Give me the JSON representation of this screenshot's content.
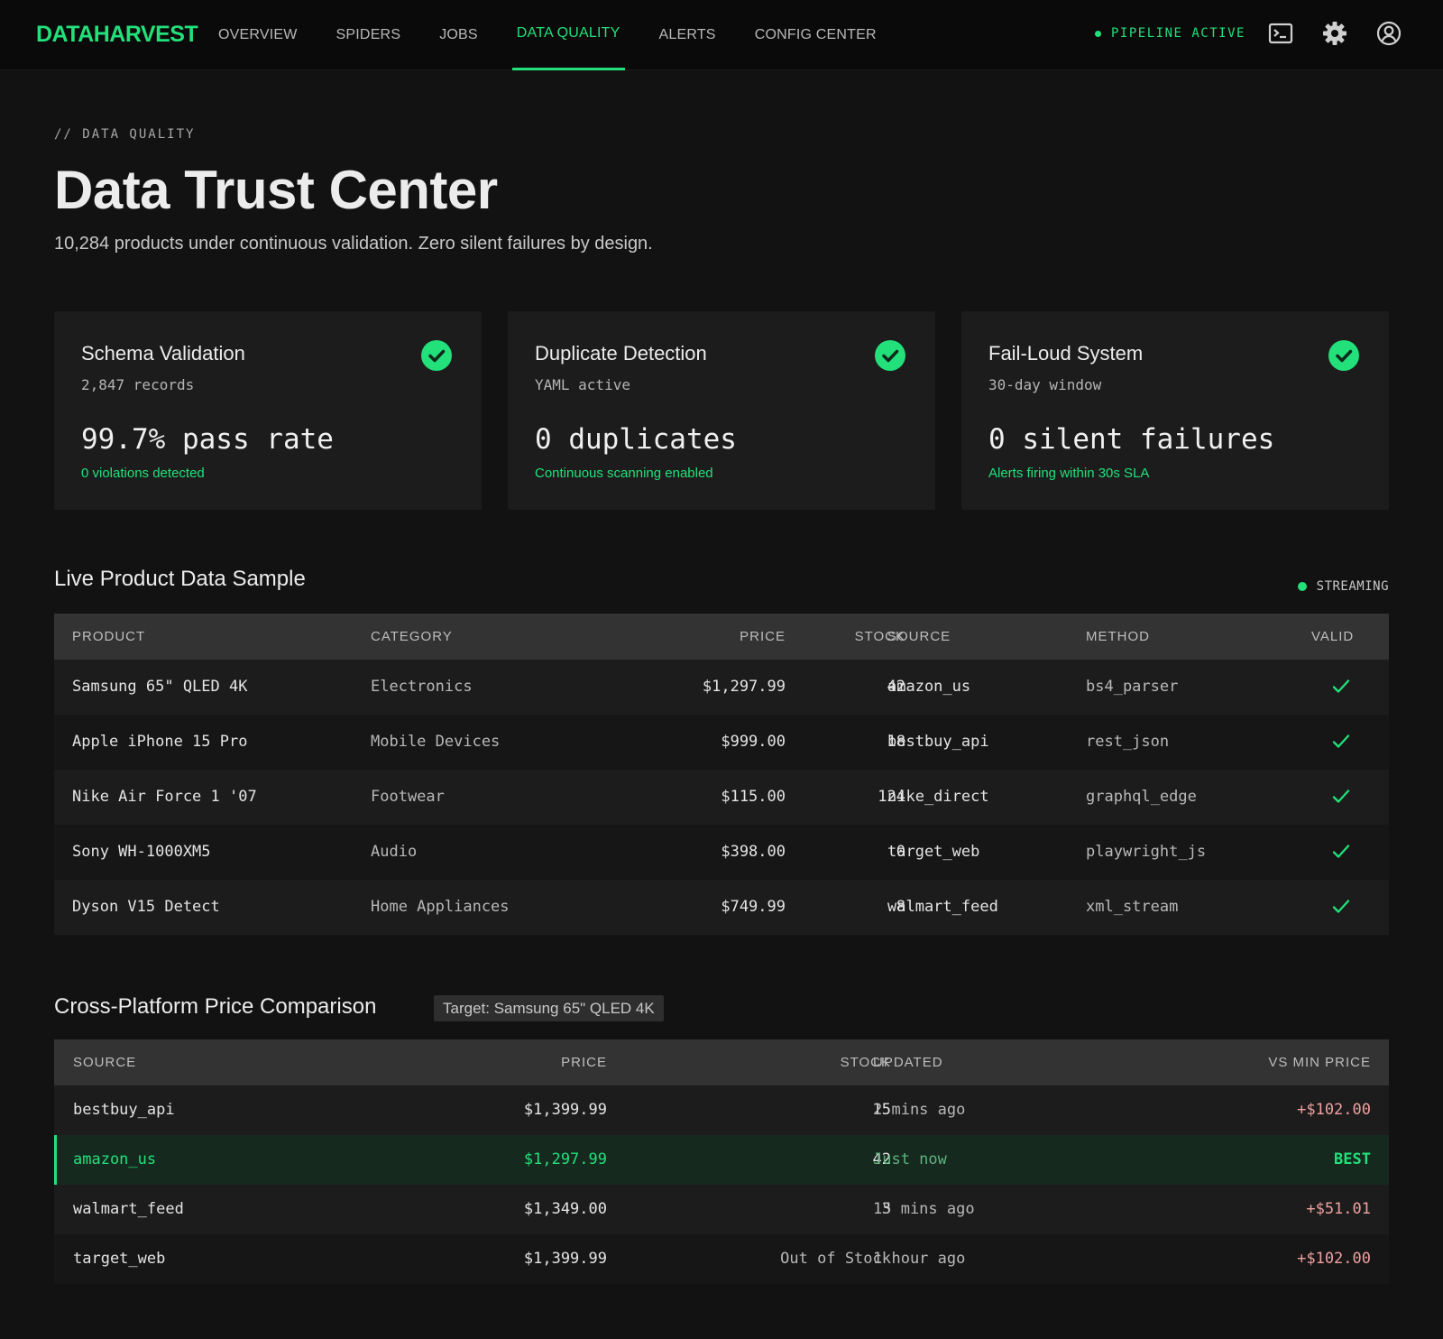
{
  "nav": {
    "brand": "DATAHARVEST",
    "links": [
      "OVERVIEW",
      "SPIDERS",
      "JOBS",
      "DATA QUALITY",
      "ALERTS",
      "CONFIG CENTER"
    ],
    "active_index": 3,
    "status": "PIPELINE ACTIVE",
    "icons": [
      "terminal-icon",
      "gear-icon",
      "user-account-icon"
    ]
  },
  "header": {
    "eyebrow": "// DATA QUALITY",
    "title": "Data Trust Center",
    "subtitle": "10,284 products under continuous validation. Zero silent failures by design."
  },
  "cards": [
    {
      "title": "Schema Validation",
      "sub": "2,847 records",
      "metric": "99.7% pass rate",
      "note": "0 violations detected"
    },
    {
      "title": "Duplicate Detection",
      "sub": "YAML active",
      "metric": "0 duplicates",
      "note": "Continuous scanning enabled"
    },
    {
      "title": "Fail-Loud System",
      "sub": "30-day window",
      "metric": "0 silent failures",
      "note": "Alerts firing within 30s SLA"
    }
  ],
  "live": {
    "title": "Live Product Data Sample",
    "status": "STREAMING",
    "columns": [
      "PRODUCT",
      "CATEGORY",
      "PRICE",
      "STOCK",
      "SOURCE",
      "METHOD",
      "VALID"
    ],
    "rows": [
      {
        "product": "Samsung 65\" QLED 4K",
        "category": "Electronics",
        "price": "$1,297.99",
        "stock": "42",
        "source": "amazon_us",
        "method": "bs4_parser",
        "valid": true
      },
      {
        "product": "Apple iPhone 15 Pro",
        "category": "Mobile Devices",
        "price": "$999.00",
        "stock": "18",
        "source": "bestbuy_api",
        "method": "rest_json",
        "valid": true
      },
      {
        "product": "Nike Air Force 1 '07",
        "category": "Footwear",
        "price": "$115.00",
        "stock": "124",
        "source": "nike_direct",
        "method": "graphql_edge",
        "valid": true
      },
      {
        "product": "Sony WH-1000XM5",
        "category": "Audio",
        "price": "$398.00",
        "stock": "0",
        "source": "target_web",
        "method": "playwright_js",
        "valid": true
      },
      {
        "product": "Dyson V15 Detect",
        "category": "Home Appliances",
        "price": "$749.99",
        "stock": "8",
        "source": "walmart_feed",
        "method": "xml_stream",
        "valid": true
      }
    ]
  },
  "compare": {
    "title": "Cross-Platform Price Comparison",
    "target": "Target: Samsung 65\" QLED 4K",
    "columns": [
      "SOURCE",
      "PRICE",
      "STOCK",
      "UPDATED",
      "VS MIN PRICE"
    ],
    "rows": [
      {
        "source": "bestbuy_api",
        "price": "$1,399.99",
        "stock": "15",
        "updated": "2 mins ago",
        "vs": "+$102.00",
        "best": false
      },
      {
        "source": "amazon_us",
        "price": "$1,297.99",
        "stock": "42",
        "updated": "Just now",
        "vs": "BEST",
        "best": true
      },
      {
        "source": "walmart_feed",
        "price": "$1,349.00",
        "stock": "3",
        "updated": "15 mins ago",
        "vs": "+$51.01",
        "best": false
      },
      {
        "source": "target_web",
        "price": "$1,399.99",
        "stock": "Out of Stock",
        "updated": "1 hour ago",
        "vs": "+$102.00",
        "best": false
      }
    ]
  },
  "colors": {
    "accent": "#22e07a",
    "background": "#121212",
    "card": "#1c1c1c",
    "price_up": "#f0a0a0"
  }
}
